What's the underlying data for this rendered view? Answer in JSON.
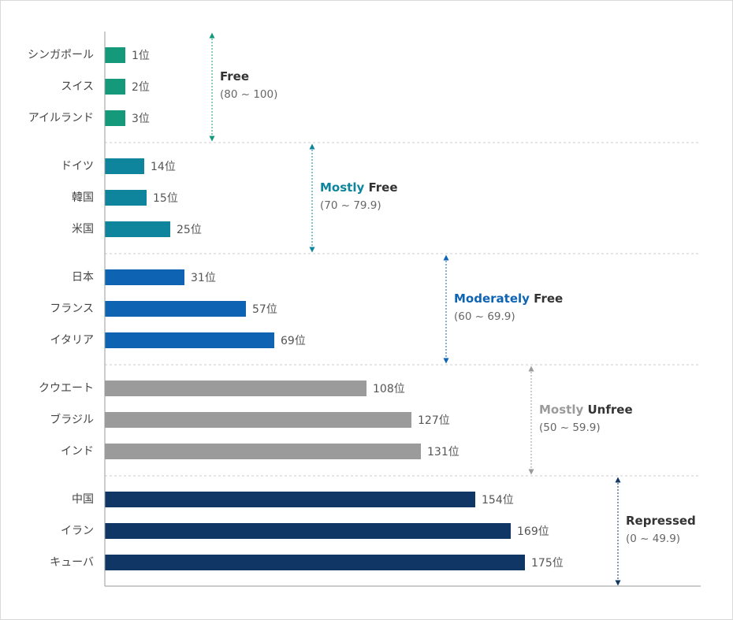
{
  "chart_data": {
    "type": "bar",
    "orientation": "horizontal",
    "title": "",
    "xlabel": "",
    "ylabel": "",
    "value_suffix": "位",
    "xlim": [
      0,
      180
    ],
    "colors": {
      "free": "#149a7b",
      "mostly_free": "#0e859c",
      "moderately_free": "#0e64b2",
      "mostly_unfree": "#9b9b9b",
      "repressed": "#0f3664",
      "text_dark": "#333333",
      "divider": "#cccccc",
      "axis": "#999999"
    },
    "groups": [
      {
        "key": "free",
        "name_prefix": "",
        "name_main": "Free",
        "range": "(80 ~ 100)",
        "countries": [
          {
            "name": "シンガポール",
            "rank": 1
          },
          {
            "name": "スイス",
            "rank": 2
          },
          {
            "name": "アイルランド",
            "rank": 3
          }
        ]
      },
      {
        "key": "mostly_free",
        "name_prefix": "Mostly",
        "name_main": "Free",
        "range": "(70 ~ 79.9)",
        "countries": [
          {
            "name": "ドイツ",
            "rank": 14
          },
          {
            "name": "韓国",
            "rank": 15
          },
          {
            "name": "米国",
            "rank": 25
          }
        ]
      },
      {
        "key": "moderately_free",
        "name_prefix": "Moderately",
        "name_main": "Free",
        "range": "(60 ~ 69.9)",
        "countries": [
          {
            "name": "日本",
            "rank": 31
          },
          {
            "name": "フランス",
            "rank": 57
          },
          {
            "name": "イタリア",
            "rank": 69
          }
        ]
      },
      {
        "key": "mostly_unfree",
        "name_prefix": "Mostly",
        "name_main": "Unfree",
        "range": "(50 ~ 59.9)",
        "countries": [
          {
            "name": "クウエート",
            "rank": 108
          },
          {
            "name": "ブラジル",
            "rank": 127
          },
          {
            "name": "インド",
            "rank": 131
          }
        ]
      },
      {
        "key": "repressed",
        "name_prefix": "",
        "name_main": "Repressed",
        "range": "(0 ~ 49.9)",
        "countries": [
          {
            "name": "中国",
            "rank": 154
          },
          {
            "name": "イラン",
            "rank": 169
          },
          {
            "name": "キューバ",
            "rank": 175
          }
        ]
      }
    ]
  }
}
